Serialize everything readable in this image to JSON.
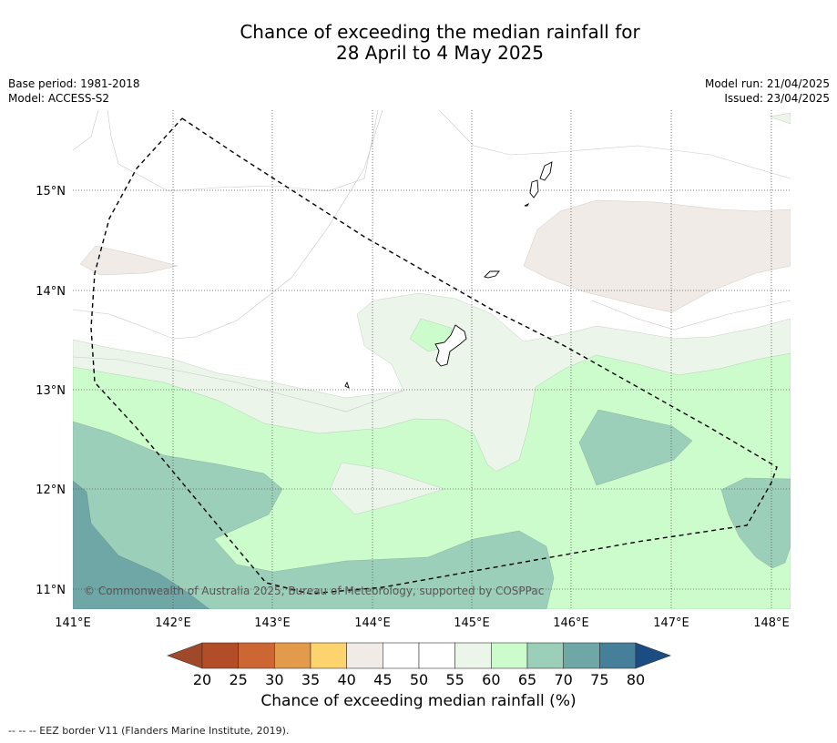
{
  "title": {
    "line1": "Chance of exceeding the median rainfall for",
    "line2": "28 April to 4 May 2025"
  },
  "meta": {
    "base_period": "Base period: 1981-2018",
    "model": "Model: ACCESS-S2",
    "model_run": "Model run: 21/04/2025",
    "issued": "Issued: 23/04/2025"
  },
  "axes": {
    "lat_labels": [
      "15°N",
      "14°N",
      "13°N",
      "12°N",
      "11°N"
    ],
    "lon_labels": [
      "141°E",
      "142°E",
      "143°E",
      "144°E",
      "145°E",
      "146°E",
      "147°E",
      "148°E"
    ]
  },
  "copyright": "© Commonwealth of Australia 2025, Bureau of Meteorology, supported by COSPPac",
  "colorbar": {
    "title": "Chance of exceeding median rainfall (%)",
    "ticks": [
      "20",
      "25",
      "30",
      "35",
      "40",
      "45",
      "50",
      "55",
      "60",
      "65",
      "70",
      "75",
      "80"
    ],
    "colors": {
      "below20": "#a0482a",
      "c20_25": "#b34d28",
      "c25_30": "#cc6633",
      "c30_35": "#e39a4a",
      "c35_40": "#fdd36d",
      "c40_45": "#f0ebe6",
      "c45_50": "#ffffff",
      "c50_55": "#ffffff",
      "c55_60": "#ebf5ea",
      "c60_65": "#ccfccc",
      "c65_70": "#9ccfb9",
      "c70_75": "#6fa6a6",
      "c75_80": "#467f99",
      "above80": "#1b4d82"
    }
  },
  "footnote": "--  --  -- EEZ border V11 (Flanders Marine Institute, 2019)."
}
